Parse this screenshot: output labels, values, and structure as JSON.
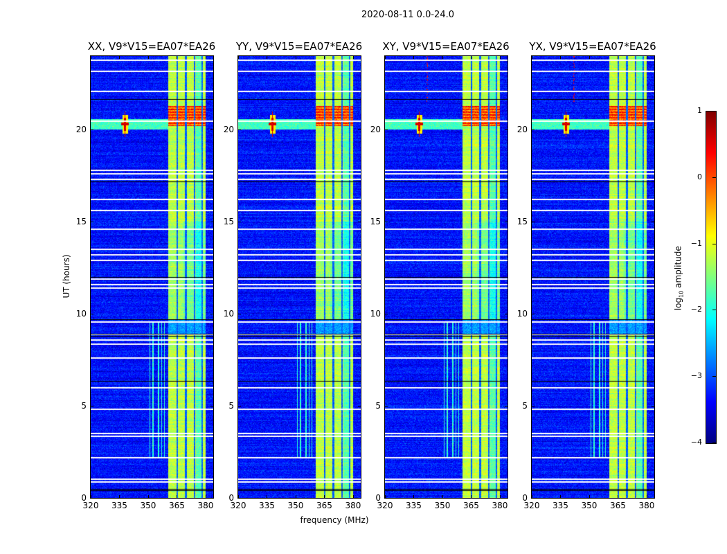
{
  "chart_data": {
    "type": "heatmap",
    "title": "2020-08-11 0.0-24.0",
    "xlabel": "frequency (MHz)",
    "ylabel": "UT (hours)",
    "xlim": [
      320,
      384
    ],
    "ylim": [
      0,
      24
    ],
    "xticks": [
      320,
      335,
      350,
      365,
      380
    ],
    "yticks": [
      0,
      5,
      10,
      15,
      20
    ],
    "panels": [
      {
        "title": "XX, V9*V15=EA07*EA26"
      },
      {
        "title": "YY, V9*V15=EA07*EA26"
      },
      {
        "title": "XY, V9*V15=EA07*EA26"
      },
      {
        "title": "YX, V9*V15=EA07*EA26"
      }
    ],
    "colorbar": {
      "label": "log10 amplitude",
      "label_main": "log",
      "label_sub": "10",
      "label_rest": " amplitude",
      "range": [
        -4,
        1
      ],
      "ticks": [
        1,
        0,
        -1,
        -2,
        -3,
        -4
      ],
      "tick_labels": [
        "1",
        "0",
        "−1",
        "−2",
        "−3",
        "−4"
      ],
      "colormap": "jet"
    },
    "features": {
      "background_log_amplitude": -3.3,
      "rfi_band_MHz": [
        360.5,
        380
      ],
      "rfi_band_log_amplitude": -1.2,
      "strong_rfi_hours": [
        20.2,
        21.3
      ],
      "strong_rfi_log_amplitude": 0.1,
      "point_source": {
        "freq_MHz": 338,
        "hour": 20.3,
        "log_amplitude": 0.6
      },
      "flagged_hours_white": [
        23.76,
        23.16,
        22.07,
        20.45,
        17.8,
        17.6,
        17.3,
        16.2,
        15.6,
        14.6,
        13.5,
        13.2,
        12.9,
        11.9,
        11.6,
        11.4,
        9.55,
        8.87,
        8.57,
        8.35,
        7.6,
        6.0,
        4.8,
        3.5,
        3.35,
        2.2,
        1.0,
        0.85
      ],
      "flagged_hours_black": [
        21.65,
        17.2,
        12.0,
        9.7,
        8.9,
        8.8,
        6.35,
        0.5,
        0.4
      ]
    }
  }
}
